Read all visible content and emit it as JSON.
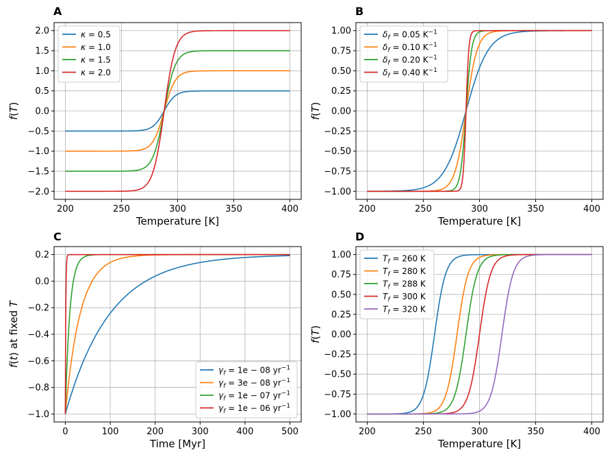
{
  "chart_data": [
    {
      "panel": "A",
      "type": "line",
      "xlabel": "Temperature [K]",
      "ylabel": "f(T)",
      "xlim": [
        190,
        410
      ],
      "ylim": [
        -2.2,
        2.2
      ],
      "xticks": [
        "200",
        "250",
        "300",
        "350",
        "400"
      ],
      "yticks": [
        "−2.0",
        "−1.5",
        "−1.0",
        "−0.5",
        "0.0",
        "0.5",
        "1.0",
        "1.5",
        "2.0"
      ],
      "legend_position": "upper-left",
      "grid": true,
      "model": {
        "family": "tanh",
        "amplitude_param": "kappa",
        "T0": 288,
        "delta": 0.1
      },
      "series": [
        {
          "name": "κ = 0.5",
          "kappa": 0.5,
          "color": "#1f77b4"
        },
        {
          "name": "κ = 1.0",
          "kappa": 1.0,
          "color": "#ff7f0e"
        },
        {
          "name": "κ = 1.5",
          "kappa": 1.5,
          "color": "#2ca02c"
        },
        {
          "name": "κ = 2.0",
          "kappa": 2.0,
          "color": "#d62728"
        }
      ]
    },
    {
      "panel": "B",
      "type": "line",
      "xlabel": "Temperature [K]",
      "ylabel": "f(T)",
      "xlim": [
        190,
        410
      ],
      "ylim": [
        -1.1,
        1.1
      ],
      "xticks": [
        "200",
        "250",
        "300",
        "350",
        "400"
      ],
      "yticks": [
        "−1.00",
        "−0.75",
        "−0.50",
        "−0.25",
        "0.00",
        "0.25",
        "0.50",
        "0.75",
        "1.00"
      ],
      "legend_position": "upper-left",
      "grid": true,
      "model": {
        "family": "tanh",
        "steepness_param": "delta_f",
        "T0": 288,
        "kappa": 1.0
      },
      "series": [
        {
          "name": "δf = 0.05 K⁻¹",
          "delta": 0.05,
          "color": "#1f77b4"
        },
        {
          "name": "δf = 0.10 K⁻¹",
          "delta": 0.1,
          "color": "#ff7f0e"
        },
        {
          "name": "δf = 0.20 K⁻¹",
          "delta": 0.2,
          "color": "#2ca02c"
        },
        {
          "name": "δf = 0.40 K⁻¹",
          "delta": 0.4,
          "color": "#d62728"
        }
      ]
    },
    {
      "panel": "C",
      "type": "line",
      "xlabel": "Time [Myr]",
      "ylabel": "f(t) at fixed T",
      "xlim": [
        -25,
        525
      ],
      "ylim": [
        -1.06,
        0.26
      ],
      "xticks": [
        "0",
        "100",
        "200",
        "300",
        "400",
        "500"
      ],
      "yticks": [
        "−1.0",
        "−0.8",
        "−0.6",
        "−0.4",
        "−0.2",
        "0.0",
        "0.2"
      ],
      "legend_position": "lower-right",
      "grid": true,
      "model": {
        "family": "exponential-relaxation",
        "start": -1.0,
        "end": 0.2
      },
      "series": [
        {
          "name": "γf = 1e − 08 yr⁻¹",
          "gamma": 1e-08,
          "color": "#1f77b4"
        },
        {
          "name": "γf = 3e − 08 yr⁻¹",
          "gamma": 3e-08,
          "color": "#ff7f0e"
        },
        {
          "name": "γf = 1e − 07 yr⁻¹",
          "gamma": 1e-07,
          "color": "#2ca02c"
        },
        {
          "name": "γf = 1e − 06 yr⁻¹",
          "gamma": 1e-06,
          "color": "#d62728"
        }
      ]
    },
    {
      "panel": "D",
      "type": "line",
      "xlabel": "Temperature [K]",
      "ylabel": "f(T)",
      "xlim": [
        190,
        410
      ],
      "ylim": [
        -1.1,
        1.1
      ],
      "xticks": [
        "200",
        "250",
        "300",
        "350",
        "400"
      ],
      "yticks": [
        "−1.00",
        "−0.75",
        "−0.50",
        "−0.25",
        "0.00",
        "0.25",
        "0.50",
        "0.75",
        "1.00"
      ],
      "legend_position": "upper-left",
      "grid": true,
      "model": {
        "family": "tanh",
        "center_param": "T_f",
        "delta": 0.1,
        "kappa": 1.0
      },
      "series": [
        {
          "name": "Tf = 260 K",
          "T0": 260,
          "color": "#1f77b4"
        },
        {
          "name": "Tf = 280 K",
          "T0": 280,
          "color": "#ff7f0e"
        },
        {
          "name": "Tf = 288 K",
          "T0": 288,
          "color": "#2ca02c"
        },
        {
          "name": "Tf = 300 K",
          "T0": 300,
          "color": "#d62728"
        },
        {
          "name": "Tf = 320 K",
          "T0": 320,
          "color": "#9467bd"
        }
      ]
    }
  ]
}
